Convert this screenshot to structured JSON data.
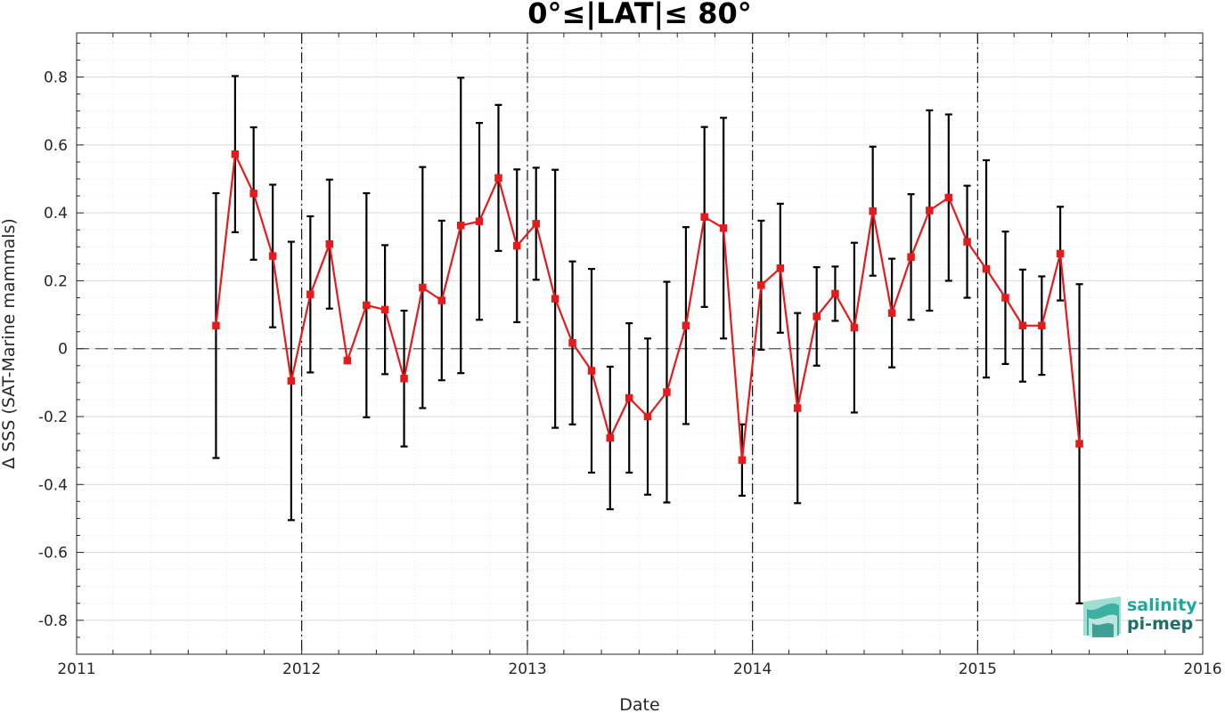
{
  "chart_data": {
    "type": "line",
    "title": "0°≤|LAT|≤ 80°",
    "xlabel": "Date",
    "ylabel": "Δ SSS (SAT-Marine mammals)",
    "xlim": [
      "2011-01-01",
      "2016-01-01"
    ],
    "ylim": [
      -0.9,
      0.93
    ],
    "x_ticks": [
      "2011",
      "2012",
      "2013",
      "2014",
      "2015",
      "2016"
    ],
    "y_ticks": [
      "-0.8",
      "-0.6",
      "-0.4",
      "-0.2",
      "0",
      "0.2",
      "0.4",
      "0.6",
      "0.8"
    ],
    "y_tick_values": [
      -0.8,
      -0.6,
      -0.4,
      -0.2,
      0,
      0.2,
      0.4,
      0.6,
      0.8
    ],
    "grid": true,
    "minor_grid": true,
    "reference_line_y": 0,
    "year_boundary_lines": [
      "2012-01-01",
      "2013-01-01",
      "2014-01-01",
      "2015-01-01"
    ],
    "marker": "square",
    "colors": {
      "line": "#e41a1c",
      "error_bars": "#000000",
      "grid": "#d9d9d9",
      "zero_line": "#555555"
    },
    "series": [
      {
        "x": [
          "2011-08-15",
          "2011-09-15",
          "2011-10-15",
          "2011-11-15",
          "2011-12-15",
          "2012-01-15",
          "2012-02-15",
          "2012-03-15",
          "2012-04-15",
          "2012-05-15",
          "2012-06-15",
          "2012-07-15",
          "2012-08-15",
          "2012-09-15",
          "2012-10-15",
          "2012-11-15",
          "2012-12-15",
          "2013-01-15",
          "2013-02-15",
          "2013-03-15",
          "2013-04-15",
          "2013-05-15",
          "2013-06-15",
          "2013-07-15",
          "2013-08-15",
          "2013-09-15",
          "2013-10-15",
          "2013-11-15",
          "2013-12-15",
          "2014-01-15",
          "2014-02-15",
          "2014-03-15",
          "2014-04-15",
          "2014-05-15",
          "2014-06-15",
          "2014-07-15",
          "2014-08-15",
          "2014-09-15",
          "2014-10-15",
          "2014-11-15",
          "2014-12-15",
          "2015-01-15",
          "2015-02-15",
          "2015-03-15",
          "2015-04-15",
          "2015-05-15",
          "2015-06-15"
        ],
        "y": [
          0.068,
          0.573,
          0.457,
          0.273,
          -0.095,
          0.16,
          0.308,
          -0.035,
          0.128,
          0.115,
          -0.088,
          0.18,
          0.142,
          0.363,
          0.375,
          0.503,
          0.303,
          0.368,
          0.147,
          0.017,
          -0.065,
          -0.263,
          -0.145,
          -0.2,
          -0.128,
          0.068,
          0.388,
          0.355,
          -0.328,
          0.187,
          0.237,
          -0.175,
          0.095,
          0.162,
          0.062,
          0.405,
          0.105,
          0.27,
          0.407,
          0.445,
          0.315,
          0.235,
          0.15,
          0.068,
          0.068,
          0.28,
          -0.28
        ],
        "error": [
          0.39,
          0.23,
          0.195,
          0.21,
          0.41,
          0.23,
          0.19,
          0.0,
          0.33,
          0.19,
          0.2,
          0.355,
          0.235,
          0.435,
          0.29,
          0.215,
          0.225,
          0.165,
          0.38,
          0.24,
          0.3,
          0.21,
          0.22,
          0.23,
          0.325,
          0.29,
          0.265,
          0.325,
          0.105,
          0.19,
          0.19,
          0.28,
          0.145,
          0.08,
          0.25,
          0.19,
          0.16,
          0.185,
          0.295,
          0.245,
          0.165,
          0.32,
          0.195,
          0.165,
          0.145,
          0.138,
          0.47
        ]
      }
    ]
  },
  "logo": {
    "line1": "salinity",
    "line2": "pi-mep",
    "color1": "#1fa899",
    "color2": "#1e6e64"
  }
}
